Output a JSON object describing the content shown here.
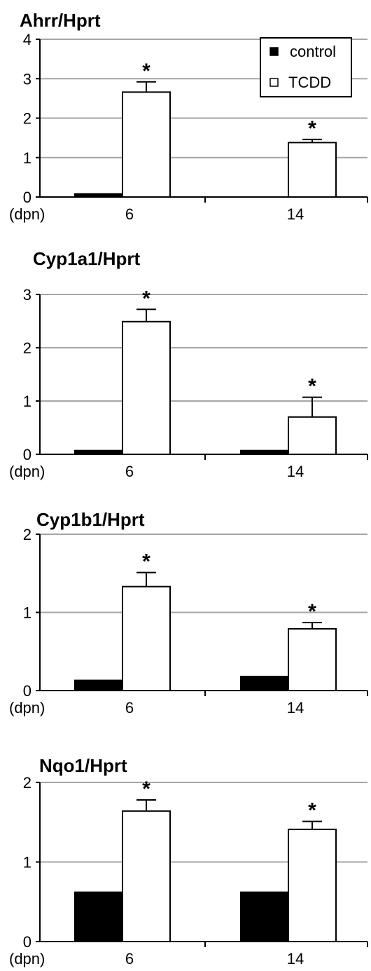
{
  "chart_data": [
    {
      "type": "bar",
      "title": "Ahrr/Hprt",
      "xlabel": "(dpn)",
      "categories": [
        "6",
        "14"
      ],
      "ylim": [
        0,
        4
      ],
      "yticks": [
        "0",
        "1",
        "2",
        "3",
        "4"
      ],
      "grid": true,
      "legend": "top-right",
      "series": [
        {
          "name": "control",
          "values": [
            0.08,
            0.0
          ],
          "errors": [
            0.01,
            0.0
          ],
          "color": "#000000"
        },
        {
          "name": "TCDD",
          "values": [
            2.66,
            1.38
          ],
          "errors": [
            0.26,
            0.08
          ],
          "color": "#ffffff"
        }
      ],
      "annotations": [
        {
          "series": "TCDD",
          "category": "6",
          "text": "*"
        },
        {
          "series": "TCDD",
          "category": "14",
          "text": "*"
        }
      ]
    },
    {
      "type": "bar",
      "title": "Cyp1a1/Hprt",
      "xlabel": "(dpn)",
      "categories": [
        "6",
        "14"
      ],
      "ylim": [
        0,
        3
      ],
      "yticks": [
        "0",
        "1",
        "2",
        "3"
      ],
      "grid": true,
      "series": [
        {
          "name": "control",
          "values": [
            0.07,
            0.07
          ],
          "errors": [
            0.01,
            0.01
          ],
          "color": "#000000"
        },
        {
          "name": "TCDD",
          "values": [
            2.49,
            0.7
          ],
          "errors": [
            0.23,
            0.37
          ],
          "color": "#ffffff"
        }
      ],
      "annotations": [
        {
          "series": "TCDD",
          "category": "6",
          "text": "*"
        },
        {
          "series": "TCDD",
          "category": "14",
          "text": "*"
        }
      ]
    },
    {
      "type": "bar",
      "title": "Cyp1b1/Hprt",
      "xlabel": "(dpn)",
      "categories": [
        "6",
        "14"
      ],
      "ylim": [
        0,
        2
      ],
      "yticks": [
        "0",
        "1",
        "2"
      ],
      "grid": true,
      "series": [
        {
          "name": "control",
          "values": [
            0.13,
            0.18
          ],
          "errors": [
            0.01,
            0.01
          ],
          "color": "#000000"
        },
        {
          "name": "TCDD",
          "values": [
            1.33,
            0.79
          ],
          "errors": [
            0.18,
            0.08
          ],
          "color": "#ffffff"
        }
      ],
      "annotations": [
        {
          "series": "TCDD",
          "category": "6",
          "text": "*"
        },
        {
          "series": "TCDD",
          "category": "14",
          "text": "*"
        }
      ]
    },
    {
      "type": "bar",
      "title": "Nqo1/Hprt",
      "xlabel": "(dpn)",
      "categories": [
        "6",
        "14"
      ],
      "ylim": [
        0,
        2
      ],
      "yticks": [
        "0",
        "1",
        "2"
      ],
      "grid": true,
      "series": [
        {
          "name": "control",
          "values": [
            0.62,
            0.62
          ],
          "errors": [
            0.01,
            0.01
          ],
          "color": "#000000"
        },
        {
          "name": "TCDD",
          "values": [
            1.64,
            1.41
          ],
          "errors": [
            0.14,
            0.1
          ],
          "color": "#ffffff"
        }
      ],
      "annotations": [
        {
          "series": "TCDD",
          "category": "6",
          "text": "*"
        },
        {
          "series": "TCDD",
          "category": "14",
          "text": "*"
        }
      ]
    }
  ]
}
